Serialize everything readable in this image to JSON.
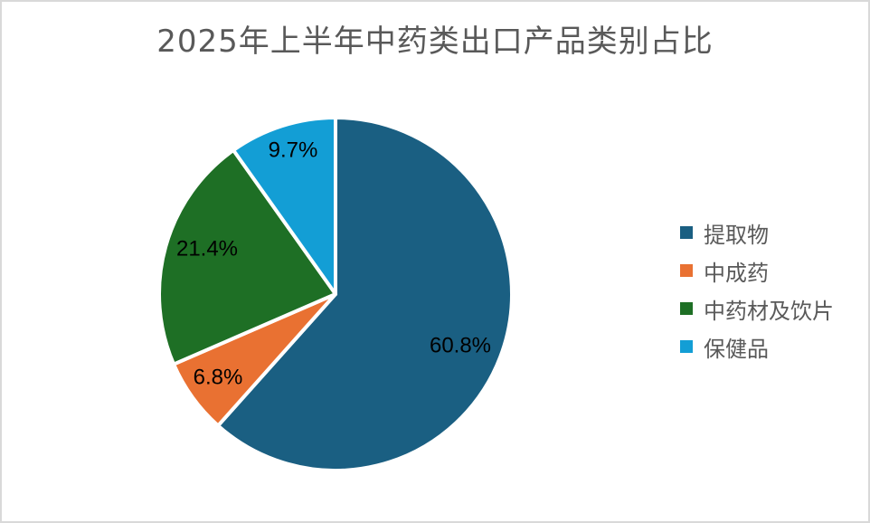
{
  "title": "2025年上半年中药类出口产品类别占比",
  "legend": [
    {
      "label": "提取物",
      "color": "#1a5f82"
    },
    {
      "label": "中成药",
      "color": "#e97132"
    },
    {
      "label": "中药材及饮片",
      "color": "#1e6f25"
    },
    {
      "label": "保健品",
      "color": "#139ed5"
    }
  ],
  "chart_data": {
    "type": "pie",
    "title": "2025年上半年中药类出口产品类别占比",
    "categories": [
      "提取物",
      "中成药",
      "中药材及饮片",
      "保健品"
    ],
    "values": [
      60.8,
      6.8,
      21.4,
      9.7
    ],
    "labels": [
      "60.8%",
      "6.8%",
      "21.4%",
      "9.7%"
    ],
    "colors": [
      "#1a5f82",
      "#e97132",
      "#1e6f25",
      "#139ed5"
    ],
    "start_angle": "12 o'clock",
    "direction": "clockwise",
    "legend_position": "right"
  }
}
